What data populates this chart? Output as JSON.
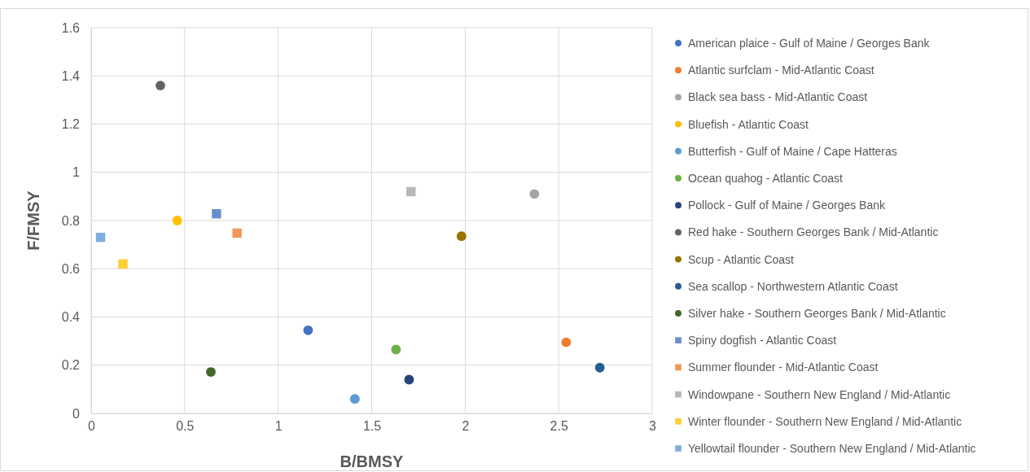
{
  "chart_data": {
    "type": "scatter",
    "xlabel": "B/BMSY",
    "ylabel": "F/FMSY",
    "xlim": [
      0,
      3
    ],
    "xticks": [
      0,
      0.5,
      1,
      1.5,
      2,
      2.5,
      3
    ],
    "ylim": [
      0,
      1.6
    ],
    "yticks": [
      0,
      0.2,
      0.4,
      0.6,
      0.8,
      1,
      1.2,
      1.4,
      1.6
    ],
    "grid": true,
    "legend": "right",
    "marker": "circle",
    "series": [
      {
        "name": "American plaice - Gulf of Maine / Georges Bank",
        "color": "#4472c4",
        "x": [
          1.16
        ],
        "values": [
          0.345
        ]
      },
      {
        "name": "Atlantic surfclam - Mid-Atlantic Coast",
        "color": "#ed7d31",
        "x": [
          2.54
        ],
        "values": [
          0.295
        ]
      },
      {
        "name": "Black sea bass - Mid-Atlantic Coast",
        "color": "#a5a5a5",
        "x": [
          2.37
        ],
        "values": [
          0.91
        ]
      },
      {
        "name": "Bluefish - Atlantic Coast",
        "color": "#ffc000",
        "x": [
          0.46
        ],
        "values": [
          0.8
        ]
      },
      {
        "name": "Butterfish - Gulf of Maine / Cape Hatteras",
        "color": "#5b9bd5",
        "x": [
          1.41
        ],
        "values": [
          0.06
        ]
      },
      {
        "name": "Ocean quahog - Atlantic Coast",
        "color": "#70ad47",
        "x": [
          1.63
        ],
        "values": [
          0.265
        ]
      },
      {
        "name": "Pollock - Gulf of Maine / Georges Bank",
        "color": "#264478",
        "x": [
          1.7
        ],
        "values": [
          0.14
        ]
      },
      {
        "name": "Red hake - Southern Georges Bank / Mid-Atlantic",
        "color": "#636363",
        "x": [
          0.37
        ],
        "values": [
          1.36
        ]
      },
      {
        "name": "Scup - Atlantic Coast",
        "color": "#997300",
        "x": [
          1.98
        ],
        "values": [
          0.735
        ]
      },
      {
        "name": "Sea scallop - Northwestern Atlantic Coast",
        "color": "#255e91",
        "x": [
          2.72
        ],
        "values": [
          0.19
        ]
      },
      {
        "name": "Silver hake - Southern Georges Bank / Mid-Atlantic",
        "color": "#43682b",
        "x": [
          0.64
        ],
        "values": [
          0.172
        ]
      },
      {
        "name": "Spiny dogfish - Atlantic Coast",
        "color": "#698ed0",
        "x": [
          0.67
        ],
        "values": [
          0.828
        ],
        "marker": "square"
      },
      {
        "name": "Summer flounder - Mid-Atlantic Coast",
        "color": "#f1975a",
        "x": [
          0.78
        ],
        "values": [
          0.748
        ],
        "marker": "square"
      },
      {
        "name": "Windowpane - Southern New England / Mid-Atlantic",
        "color": "#b7b7b7",
        "x": [
          1.71
        ],
        "values": [
          0.92
        ],
        "marker": "square"
      },
      {
        "name": "Winter flounder - Southern New England / Mid-Atlantic",
        "color": "#ffcd33",
        "x": [
          0.17
        ],
        "values": [
          0.62
        ],
        "marker": "square"
      },
      {
        "name": "Yellowtail flounder - Southern New England / Mid-Atlantic",
        "color": "#7cafdd",
        "x": [
          0.05
        ],
        "values": [
          0.73
        ],
        "marker": "square"
      }
    ]
  }
}
